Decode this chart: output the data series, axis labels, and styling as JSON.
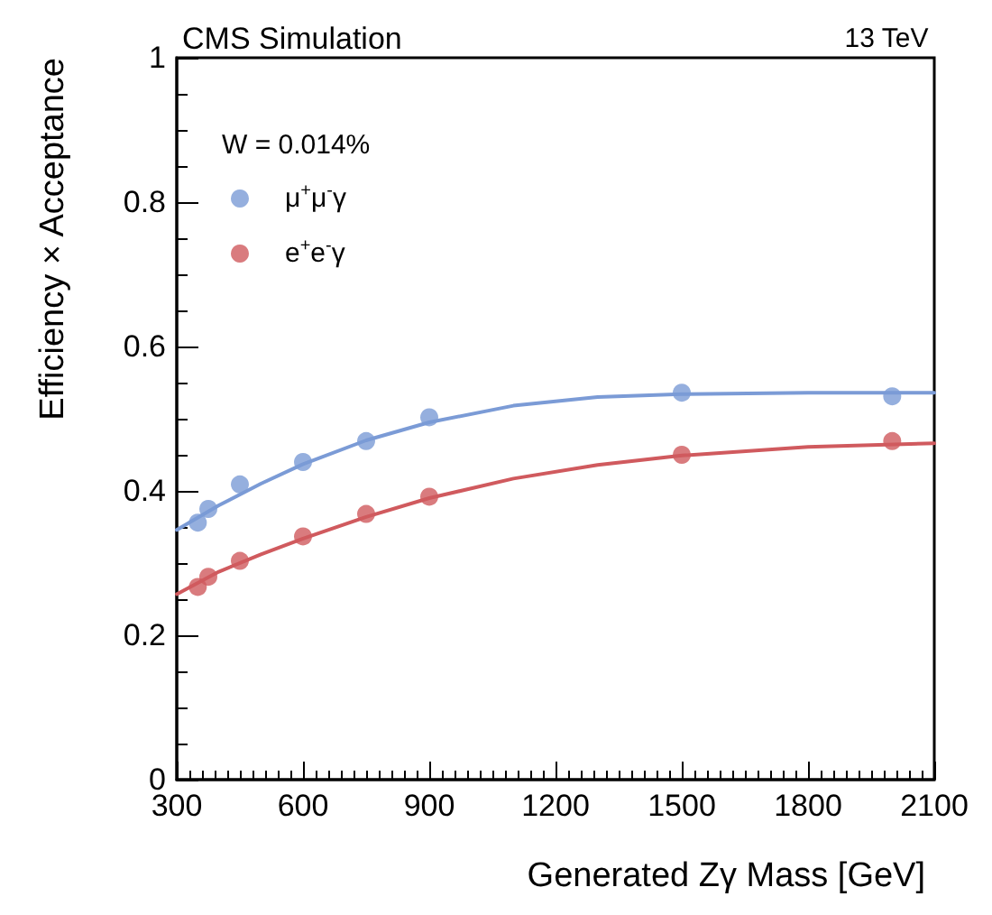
{
  "chart_data": {
    "type": "scatter",
    "title": "CMS Simulation",
    "subtitle": "13 TeV",
    "xlabel": "Generated Zγ Mass [GeV]",
    "ylabel": "Efficiency × Acceptance",
    "legend_title": "W = 0.014%",
    "legend": "top left",
    "grid": false,
    "marker": "circle",
    "line_style": "solid",
    "xlim": [
      300,
      2100
    ],
    "xticks": [
      300,
      600,
      900,
      1200,
      1500,
      1800,
      2100
    ],
    "ylim": [
      0,
      1
    ],
    "yticks": [
      0,
      0.2,
      0.4,
      0.6,
      0.8,
      1
    ],
    "series": [
      {
        "name": "μ$^{+}$μ$^{-}$γ",
        "color": "#7b9bd6",
        "x": [
          350,
          375,
          450,
          600,
          750,
          900,
          1500,
          2000
        ],
        "values": [
          0.356,
          0.375,
          0.409,
          0.44,
          0.469,
          0.502,
          0.536,
          0.531
        ]
      },
      {
        "name": "e$^{+}$e$^{-}$γ",
        "color": "#d05a5e",
        "x": [
          350,
          375,
          450,
          600,
          750,
          900,
          1500,
          2000
        ],
        "values": [
          0.267,
          0.281,
          0.303,
          0.337,
          0.368,
          0.392,
          0.45,
          0.469
        ]
      },
      {
        "type": "line",
        "marker": "none",
        "color": "#7b9bd6",
        "x": [
          300,
          400,
          500,
          600,
          750,
          900,
          1100,
          1300,
          1500,
          1800,
          2100
        ],
        "values": [
          0.346,
          0.38,
          0.41,
          0.437,
          0.47,
          0.495,
          0.518,
          0.53,
          0.534,
          0.536,
          0.536
        ]
      },
      {
        "type": "line",
        "marker": "none",
        "color": "#d05a5e",
        "x": [
          300,
          400,
          500,
          600,
          750,
          900,
          1100,
          1300,
          1500,
          1800,
          2100
        ],
        "values": [
          0.257,
          0.288,
          0.312,
          0.334,
          0.364,
          0.39,
          0.417,
          0.436,
          0.449,
          0.461,
          0.466
        ]
      }
    ]
  }
}
